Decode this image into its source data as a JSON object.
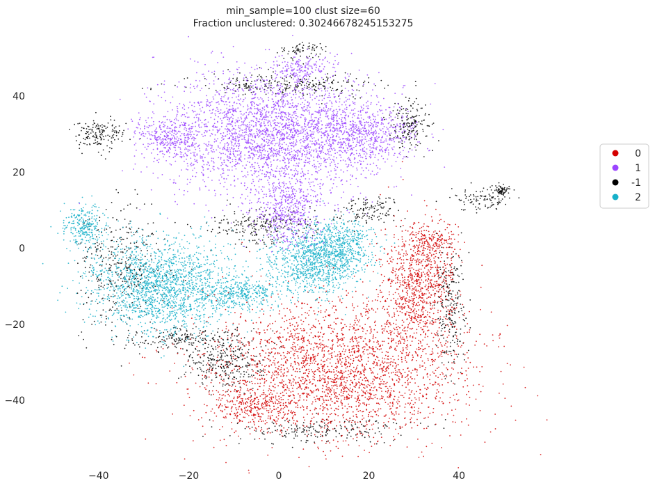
{
  "chart_data": {
    "type": "scatter",
    "title": "min_sample=100 clust size=60",
    "subtitle": "Fraction unclustered: 0.30246678245153275",
    "xlabel": "",
    "ylabel": "",
    "xlim": [
      -48,
      69
    ],
    "ylim": [
      -57,
      55
    ],
    "x_ticks": [
      {
        "value": -40,
        "label": "−40"
      },
      {
        "value": -20,
        "label": "−20"
      },
      {
        "value": 0,
        "label": "0"
      },
      {
        "value": 20,
        "label": "20"
      },
      {
        "value": 40,
        "label": "40"
      }
    ],
    "y_ticks": [
      {
        "value": 40,
        "label": "40"
      },
      {
        "value": 20,
        "label": "20"
      },
      {
        "value": 0,
        "label": "0"
      },
      {
        "value": -20,
        "label": "−20"
      },
      {
        "value": -40,
        "label": "−40"
      }
    ],
    "grid": false,
    "legend_position": "right",
    "series": [
      {
        "name": "0",
        "color": "#d40000",
        "regions": [
          {
            "cx": 13,
            "cy": -32,
            "rx": 26,
            "ry": 16,
            "n": 2600
          },
          {
            "cx": 31,
            "cy": -10,
            "rx": 8,
            "ry": 15,
            "n": 900
          },
          {
            "cx": -6,
            "cy": -42,
            "rx": 9,
            "ry": 5,
            "n": 300
          },
          {
            "cx": 34,
            "cy": 2,
            "rx": 5,
            "ry": 4,
            "n": 150
          }
        ]
      },
      {
        "name": "1",
        "color": "#9b45ff",
        "regions": [
          {
            "cx": -2,
            "cy": 30,
            "rx": 20,
            "ry": 15,
            "n": 2600
          },
          {
            "cx": 18,
            "cy": 30,
            "rx": 11,
            "ry": 8,
            "n": 700
          },
          {
            "cx": -24,
            "cy": 29,
            "rx": 7,
            "ry": 5,
            "n": 350
          },
          {
            "cx": 2,
            "cy": 9,
            "rx": 6,
            "ry": 8,
            "n": 450
          },
          {
            "cx": 5,
            "cy": 47,
            "rx": 6,
            "ry": 3,
            "n": 150
          }
        ]
      },
      {
        "name": "-1",
        "color": "#000000",
        "regions": [
          {
            "cx": 0,
            "cy": 43,
            "rx": 20,
            "ry": 3,
            "n": 260
          },
          {
            "cx": -40,
            "cy": 30,
            "rx": 5,
            "ry": 4,
            "n": 160
          },
          {
            "cx": 29,
            "cy": 32,
            "rx": 4,
            "ry": 6,
            "n": 180
          },
          {
            "cx": -35,
            "cy": -5,
            "rx": 8,
            "ry": 14,
            "n": 360
          },
          {
            "cx": -20,
            "cy": -24,
            "rx": 14,
            "ry": 3,
            "n": 200
          },
          {
            "cx": -12,
            "cy": -30,
            "rx": 8,
            "ry": 6,
            "n": 280
          },
          {
            "cx": 38,
            "cy": -15,
            "rx": 3,
            "ry": 14,
            "n": 240
          },
          {
            "cx": 10,
            "cy": -48,
            "rx": 18,
            "ry": 3,
            "n": 200
          },
          {
            "cx": -4,
            "cy": 6,
            "rx": 12,
            "ry": 4,
            "n": 240
          },
          {
            "cx": 45,
            "cy": 13,
            "rx": 6,
            "ry": 3,
            "n": 110
          },
          {
            "cx": 49.5,
            "cy": 15,
            "rx": 1.2,
            "ry": 1.6,
            "n": 60
          },
          {
            "cx": 5,
            "cy": 52,
            "rx": 4,
            "ry": 2,
            "n": 70
          },
          {
            "cx": 20,
            "cy": 10,
            "rx": 6,
            "ry": 3,
            "n": 120
          }
        ]
      },
      {
        "name": "2",
        "color": "#17b0c9",
        "regions": [
          {
            "cx": -26,
            "cy": -10,
            "rx": 14,
            "ry": 11,
            "n": 1800
          },
          {
            "cx": 8,
            "cy": -4,
            "rx": 10,
            "ry": 8,
            "n": 900
          },
          {
            "cx": 13,
            "cy": 1,
            "rx": 8,
            "ry": 6,
            "n": 500
          },
          {
            "cx": -43,
            "cy": 6,
            "rx": 4,
            "ry": 5,
            "n": 280
          },
          {
            "cx": -8,
            "cy": -12,
            "rx": 8,
            "ry": 4,
            "n": 350
          }
        ]
      }
    ]
  }
}
